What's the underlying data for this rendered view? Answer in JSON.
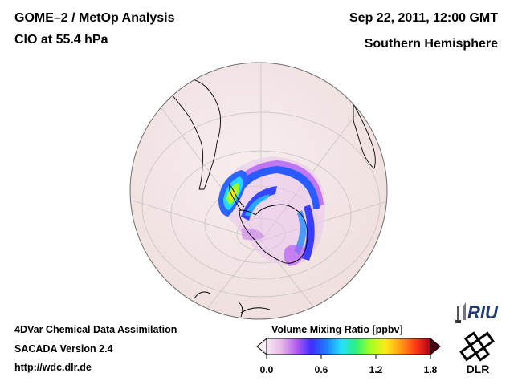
{
  "header": {
    "title_line1": "GOME–2 / MetOp Analysis",
    "title_line2": "ClO at 55.4 hPa",
    "date": "Sep 22, 2011, 12:00 GMT",
    "hemisphere": "Southern Hemisphere"
  },
  "footer": {
    "line1": "4DVar Chemical Data Assimilation",
    "line2": "SACADA Version 2.4",
    "line3": "http://wdc.dlr.de"
  },
  "colorbar": {
    "title": "Volume Mixing Ratio [ppbv]",
    "ticks": [
      "0.0",
      "0.6",
      "1.2",
      "1.8"
    ],
    "tick_values": [
      0.0,
      0.6,
      1.2,
      1.8
    ],
    "range": [
      0.0,
      1.8
    ],
    "colors": [
      "#f4e8f3",
      "#e7b8e7",
      "#b45cf0",
      "#3d2fff",
      "#1f7cff",
      "#23e1ff",
      "#2ff07a",
      "#a6ff20",
      "#ffe81a",
      "#ff9a14",
      "#ff3a16",
      "#b0001a"
    ]
  },
  "logos": {
    "riu": "RIU",
    "dlr": "DLR"
  },
  "map": {
    "ocean_color": "#f2e4e4",
    "land_outline_color": "#000000",
    "graticule_color": "#bcbcbc"
  }
}
